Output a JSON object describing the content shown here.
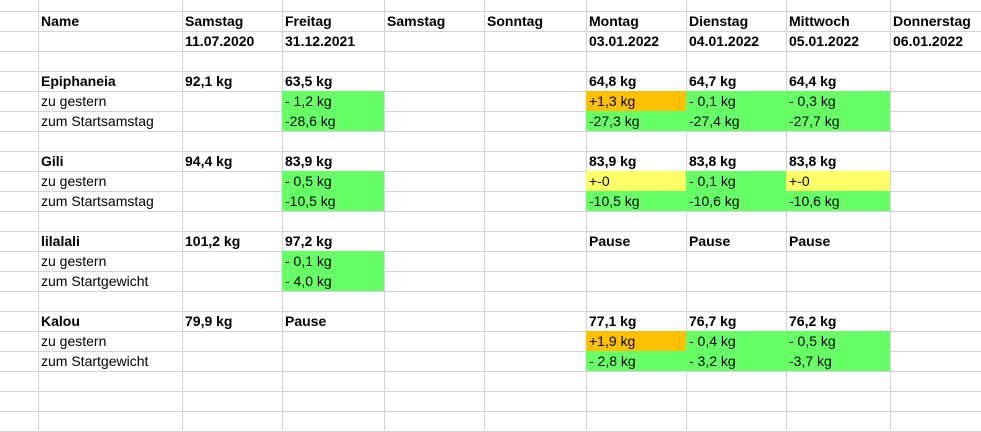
{
  "header": {
    "name_label": "Name",
    "days": [
      {
        "day": "Samstag",
        "date": "11.07.2020"
      },
      {
        "day": "Freitag",
        "date": "31.12.2021"
      },
      {
        "day": "Samstag",
        "date": ""
      },
      {
        "day": "Sonntag",
        "date": ""
      },
      {
        "day": "Montag",
        "date": "03.01.2022"
      },
      {
        "day": "Dienstag",
        "date": "04.01.2022"
      },
      {
        "day": "Mittwoch",
        "date": "05.01.2022"
      },
      {
        "day": "Donnerstag",
        "date": "06.01.2022"
      }
    ]
  },
  "people": [
    {
      "name": "Epiphaneia",
      "weights": [
        "92,1 kg",
        "63,5 kg",
        "",
        "",
        "64,8 kg",
        "64,7 kg",
        "64,4 kg",
        ""
      ],
      "rows": [
        {
          "label": "zu gestern",
          "values": [
            "",
            "- 1,2 kg",
            "",
            "",
            "+1,3 kg",
            "- 0,1 kg",
            "- 0,3 kg",
            ""
          ],
          "colors": [
            "",
            "green",
            "",
            "",
            "orange",
            "green",
            "green",
            ""
          ]
        },
        {
          "label": "zum Startsamstag",
          "values": [
            "",
            "-28,6 kg",
            "",
            "",
            "-27,3 kg",
            "-27,4 kg",
            "-27,7 kg",
            ""
          ],
          "colors": [
            "",
            "green",
            "",
            "",
            "green",
            "green",
            "green",
            ""
          ]
        }
      ]
    },
    {
      "name": "Gili",
      "weights": [
        "94,4 kg",
        "83,9 kg",
        "",
        "",
        "83,9 kg",
        "83,8 kg",
        "83,8 kg",
        ""
      ],
      "rows": [
        {
          "label": "zu gestern",
          "values": [
            "",
            "- 0,5 kg",
            "",
            "",
            "+-0",
            "- 0,1 kg",
            "+-0",
            ""
          ],
          "colors": [
            "",
            "green",
            "",
            "",
            "yellow",
            "green",
            "yellow",
            ""
          ]
        },
        {
          "label": "zum Startsamstag",
          "values": [
            "",
            "-10,5 kg",
            "",
            "",
            "-10,5 kg",
            "-10,6 kg",
            "-10,6 kg",
            ""
          ],
          "colors": [
            "",
            "green",
            "",
            "",
            "green",
            "green",
            "green",
            ""
          ]
        }
      ]
    },
    {
      "name": "lilalali",
      "weights": [
        "101,2 kg",
        "97,2 kg",
        "",
        "",
        "Pause",
        "Pause",
        "Pause",
        ""
      ],
      "rows": [
        {
          "label": "zu gestern",
          "values": [
            "",
            "- 0,1 kg",
            "",
            "",
            "",
            "",
            "",
            ""
          ],
          "colors": [
            "",
            "green",
            "",
            "",
            "",
            "",
            "",
            ""
          ]
        },
        {
          "label": "zum Startgewicht",
          "values": [
            "",
            "- 4,0 kg",
            "",
            "",
            "",
            "",
            "",
            ""
          ],
          "colors": [
            "",
            "green",
            "",
            "",
            "",
            "",
            "",
            ""
          ]
        }
      ]
    },
    {
      "name": "Kalou",
      "weights": [
        "79,9 kg",
        "Pause",
        "",
        "",
        "77,1 kg",
        "76,7 kg",
        "76,2 kg",
        ""
      ],
      "rows": [
        {
          "label": "zu gestern",
          "values": [
            "",
            "",
            "",
            "",
            "+1,9 kg",
            "- 0,4 kg",
            "- 0,5 kg",
            ""
          ],
          "colors": [
            "",
            "",
            "",
            "",
            "orange",
            "green",
            "green",
            ""
          ]
        },
        {
          "label": "zum Startgewicht",
          "values": [
            "",
            "",
            "",
            "",
            "- 2,8 kg",
            "- 3,2 kg",
            "-3,7  kg",
            ""
          ],
          "colors": [
            "",
            "",
            "",
            "",
            "green",
            "green",
            "green",
            ""
          ]
        }
      ]
    }
  ],
  "colors": {
    "green": "#66ff66",
    "orange": "#ffc000",
    "yellow": "#ffff66",
    "grid": "#d4d4d4"
  }
}
